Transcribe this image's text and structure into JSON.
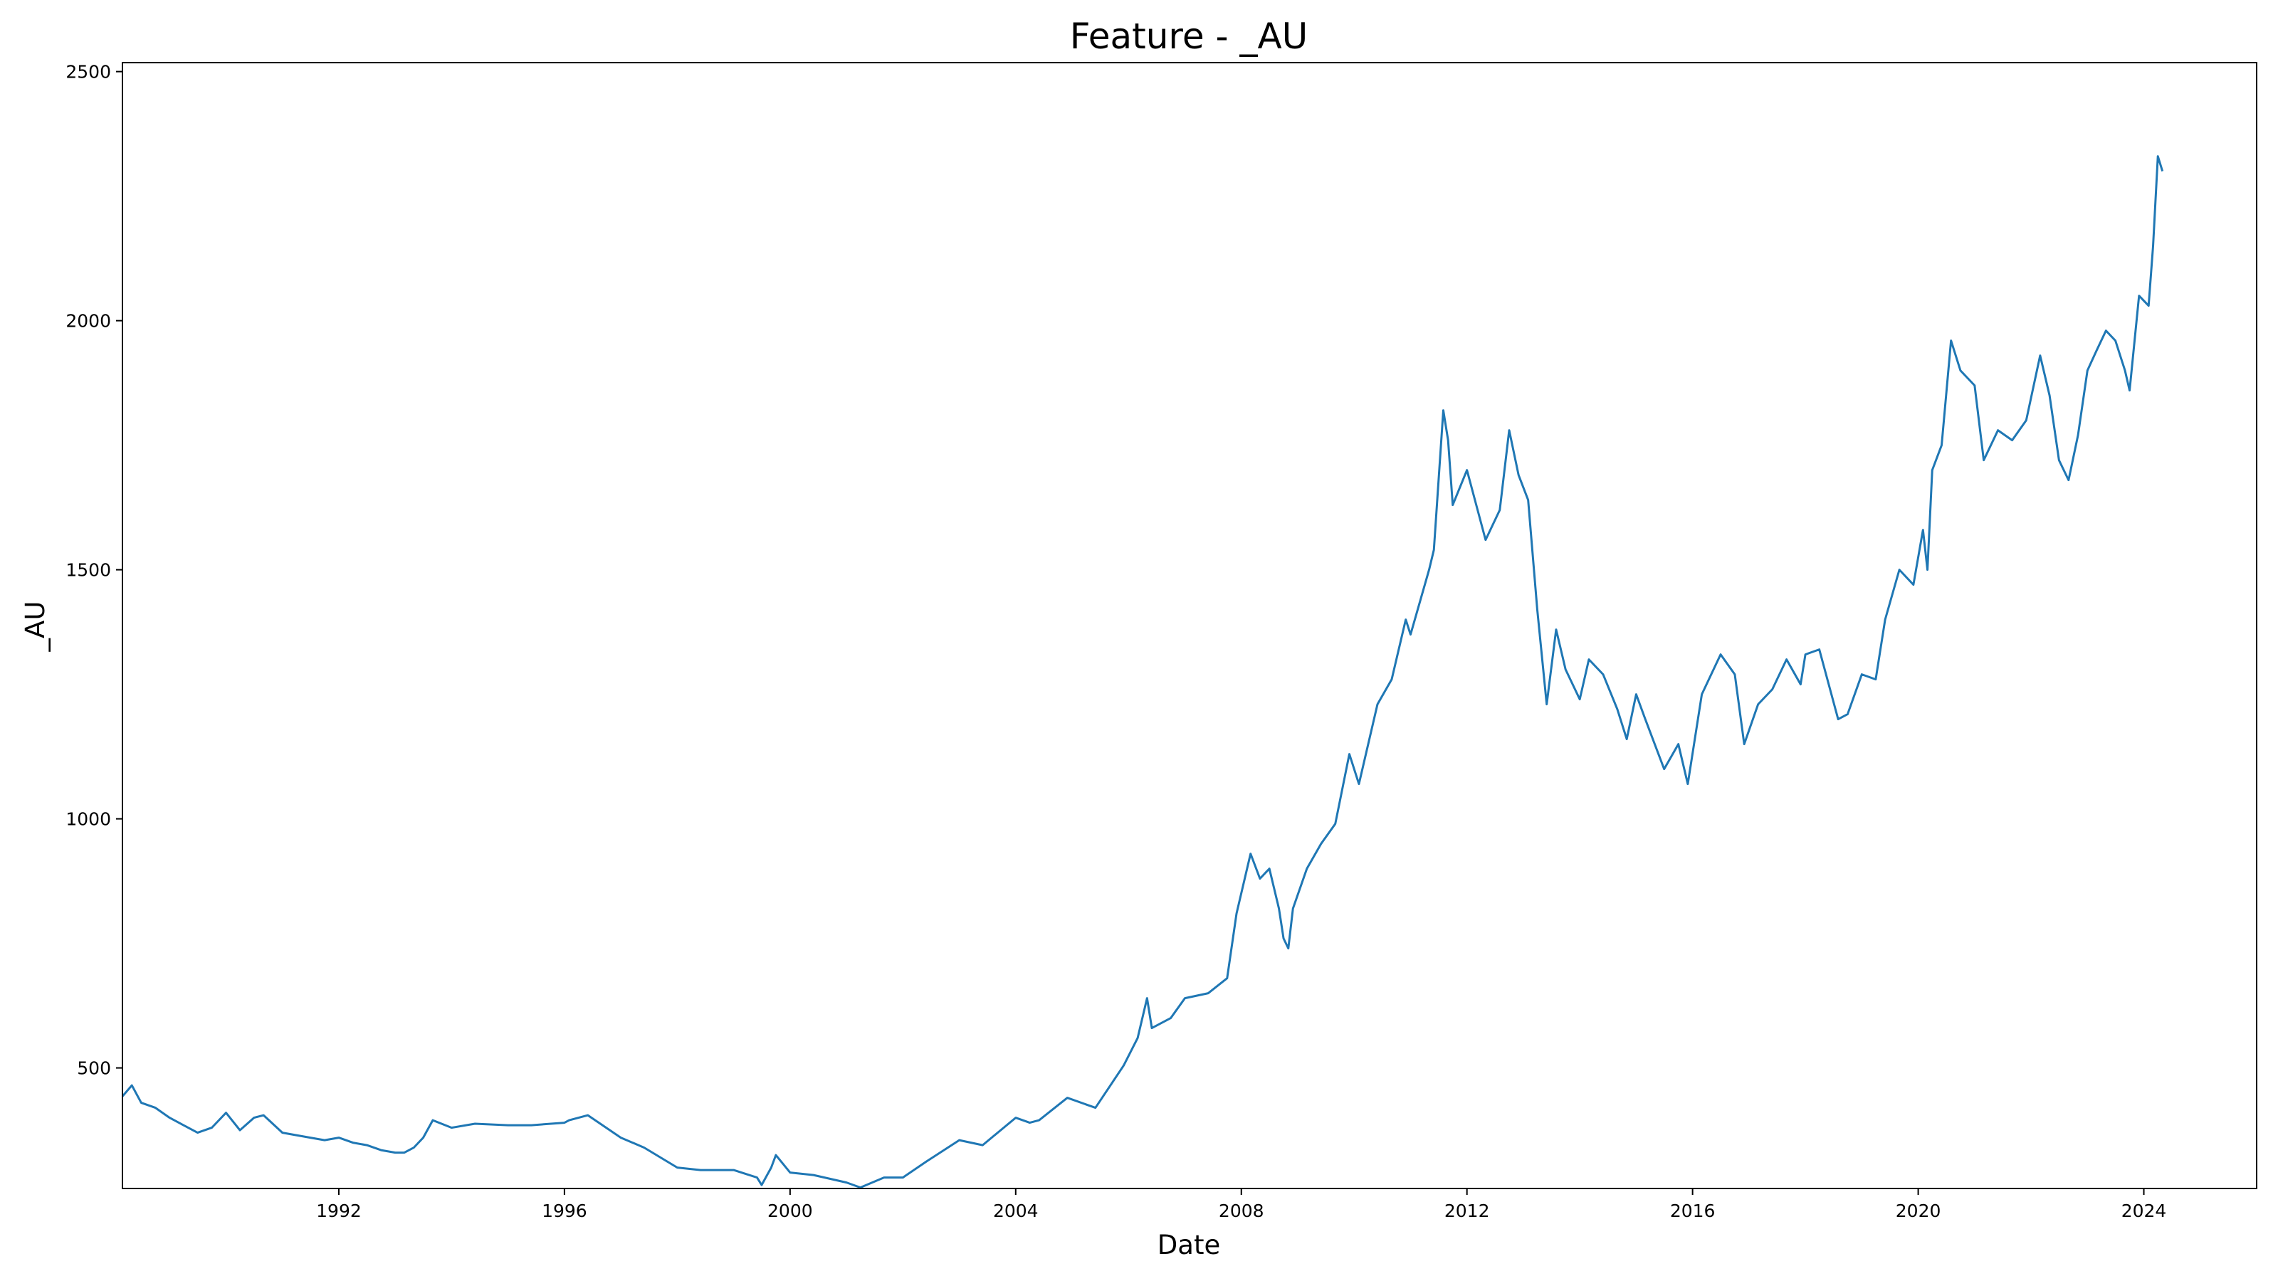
{
  "chart_data": {
    "type": "line",
    "title": "Feature - _AU",
    "xlabel": "Date",
    "ylabel": "_AU",
    "grid": false,
    "xlim": [
      "1988-03-01",
      "2026-01-01"
    ],
    "ylim": [
      258,
      2518
    ],
    "x_ticks": [
      "1992",
      "1996",
      "2000",
      "2004",
      "2008",
      "2012",
      "2016",
      "2020",
      "2024"
    ],
    "y_ticks": [
      500,
      1000,
      1500,
      2000,
      2500
    ],
    "colors": {
      "line": "#1f77b4",
      "axes": "#000000",
      "background": "#ffffff"
    },
    "series": [
      {
        "x": [
          "1988-03-01",
          "1988-05-01",
          "1988-07-01",
          "1988-10-01",
          "1989-01-01",
          "1989-04-01",
          "1989-07-01",
          "1989-10-01",
          "1990-01-01",
          "1990-04-01",
          "1990-07-01",
          "1990-09-01",
          "1991-01-01",
          "1991-04-01",
          "1991-07-01",
          "1991-10-01",
          "1992-01-01",
          "1992-04-01",
          "1992-07-01",
          "1992-10-01",
          "1993-01-01",
          "1993-03-01",
          "1993-05-01",
          "1993-07-01",
          "1993-09-01",
          "1994-01-01",
          "1994-06-01",
          "1995-01-01",
          "1995-06-01",
          "1996-01-01",
          "1996-02-01",
          "1996-06-01",
          "1997-01-01",
          "1997-06-01",
          "1998-01-01",
          "1998-06-01",
          "1999-01-01",
          "1999-06-01",
          "1999-07-01",
          "1999-09-01",
          "1999-10-01",
          "2000-01-01",
          "2000-06-01",
          "2001-01-01",
          "2001-04-01",
          "2001-09-01",
          "2002-01-01",
          "2002-06-01",
          "2003-01-01",
          "2003-06-01",
          "2004-01-01",
          "2004-04-01",
          "2004-06-01",
          "2004-12-01",
          "2005-06-01",
          "2005-12-01",
          "2006-03-01",
          "2006-05-01",
          "2006-06-01",
          "2006-10-01",
          "2007-01-01",
          "2007-06-01",
          "2007-10-01",
          "2007-12-01",
          "2008-03-01",
          "2008-05-01",
          "2008-07-01",
          "2008-09-01",
          "2008-10-01",
          "2008-11-01",
          "2008-12-01",
          "2009-03-01",
          "2009-06-01",
          "2009-09-01",
          "2009-12-01",
          "2010-02-01",
          "2010-06-01",
          "2010-09-01",
          "2010-12-01",
          "2011-01-01",
          "2011-05-01",
          "2011-06-01",
          "2011-08-01",
          "2011-09-01",
          "2011-10-01",
          "2012-01-01",
          "2012-05-01",
          "2012-08-01",
          "2012-10-01",
          "2012-12-01",
          "2013-02-01",
          "2013-04-01",
          "2013-06-01",
          "2013-08-01",
          "2013-10-01",
          "2014-01-01",
          "2014-03-01",
          "2014-06-01",
          "2014-09-01",
          "2014-11-01",
          "2015-01-01",
          "2015-03-01",
          "2015-07-01",
          "2015-10-01",
          "2015-12-01",
          "2016-03-01",
          "2016-07-01",
          "2016-10-01",
          "2016-12-01",
          "2017-03-01",
          "2017-06-01",
          "2017-09-01",
          "2017-12-01",
          "2018-01-01",
          "2018-04-01",
          "2018-08-01",
          "2018-10-01",
          "2019-01-01",
          "2019-04-01",
          "2019-06-01",
          "2019-09-01",
          "2019-12-01",
          "2020-02-01",
          "2020-03-01",
          "2020-04-01",
          "2020-06-01",
          "2020-08-01",
          "2020-10-01",
          "2021-01-01",
          "2021-03-01",
          "2021-06-01",
          "2021-09-01",
          "2021-12-01",
          "2022-03-01",
          "2022-05-01",
          "2022-07-01",
          "2022-09-01",
          "2022-11-01",
          "2023-01-01",
          "2023-03-01",
          "2023-05-01",
          "2023-07-01",
          "2023-09-01",
          "2023-10-01",
          "2023-12-01",
          "2024-02-01",
          "2024-03-01",
          "2024-04-01",
          "2024-05-01"
        ],
        "y": [
          443,
          465,
          430,
          420,
          400,
          385,
          370,
          380,
          410,
          375,
          400,
          405,
          370,
          365,
          360,
          355,
          360,
          350,
          345,
          335,
          330,
          330,
          340,
          360,
          395,
          380,
          388,
          385,
          385,
          390,
          395,
          405,
          360,
          340,
          300,
          295,
          295,
          280,
          265,
          300,
          325,
          290,
          285,
          270,
          260,
          280,
          280,
          312,
          355,
          345,
          400,
          390,
          395,
          440,
          420,
          505,
          560,
          640,
          580,
          600,
          640,
          650,
          680,
          810,
          930,
          880,
          900,
          820,
          760,
          740,
          820,
          900,
          950,
          990,
          1130,
          1070,
          1230,
          1280,
          1400,
          1370,
          1500,
          1540,
          1820,
          1760,
          1630,
          1700,
          1560,
          1620,
          1780,
          1690,
          1640,
          1420,
          1230,
          1380,
          1300,
          1240,
          1320,
          1290,
          1220,
          1160,
          1250,
          1200,
          1100,
          1150,
          1070,
          1250,
          1330,
          1290,
          1150,
          1230,
          1260,
          1320,
          1270,
          1330,
          1340,
          1200,
          1210,
          1290,
          1280,
          1400,
          1500,
          1470,
          1580,
          1500,
          1700,
          1750,
          1960,
          1900,
          1870,
          1720,
          1780,
          1760,
          1800,
          1930,
          1850,
          1720,
          1680,
          1770,
          1900,
          1940,
          1980,
          1960,
          1900,
          1860,
          2050,
          2030,
          2150,
          2330,
          2300
        ]
      }
    ]
  }
}
